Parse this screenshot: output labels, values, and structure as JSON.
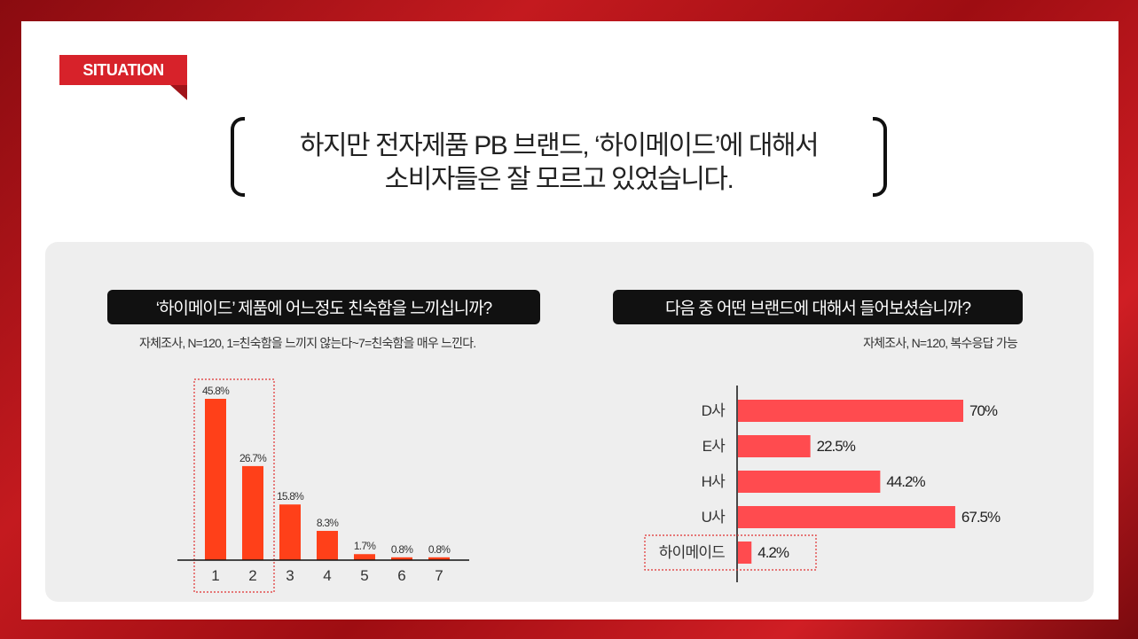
{
  "tag": "SITUATION",
  "headline": {
    "line1": "하지만 전자제품 PB 브랜드, ‘하이메이드’에 대해서",
    "line2": "소비자들은 잘 모르고 있었습니다."
  },
  "left_chart": {
    "question": "‘하이메이드’ 제품에 어느정도 친숙함을 느끼십니까?",
    "note": "자체조사, N=120, 1=친숙함을 느끼지 않는다~7=친숙함을 매우 느낀다."
  },
  "right_chart": {
    "question": "다음 중 어떤 브랜드에 대해서 들어보셨습니까?",
    "note": "자체조사, N=120, 복수응답 가능"
  },
  "colors": {
    "left_bar": "#ff4019",
    "right_bar": "#ff4b4f",
    "highlight_border": "#e03030"
  },
  "chart_data": [
    {
      "type": "bar",
      "categories": [
        "1",
        "2",
        "3",
        "4",
        "5",
        "6",
        "7"
      ],
      "values": [
        45.8,
        26.7,
        15.8,
        8.3,
        1.7,
        0.8,
        0.8
      ],
      "labels": [
        "45.8%",
        "26.7%",
        "15.8%",
        "8.3%",
        "1.7%",
        "0.8%",
        "0.8%"
      ],
      "highlighted_categories": [
        "1",
        "2"
      ],
      "ylim": [
        0,
        45.8
      ]
    },
    {
      "type": "bar",
      "orientation": "horizontal",
      "categories": [
        "D사",
        "E사",
        "H사",
        "U사",
        "하이메이드"
      ],
      "values": [
        70,
        22.5,
        44.2,
        67.5,
        4.2
      ],
      "labels": [
        "70%",
        "22.5%",
        "44.2%",
        "67.5%",
        "4.2%"
      ],
      "highlighted_categories": [
        "하이메이드"
      ],
      "xlim": [
        0,
        70
      ]
    }
  ]
}
